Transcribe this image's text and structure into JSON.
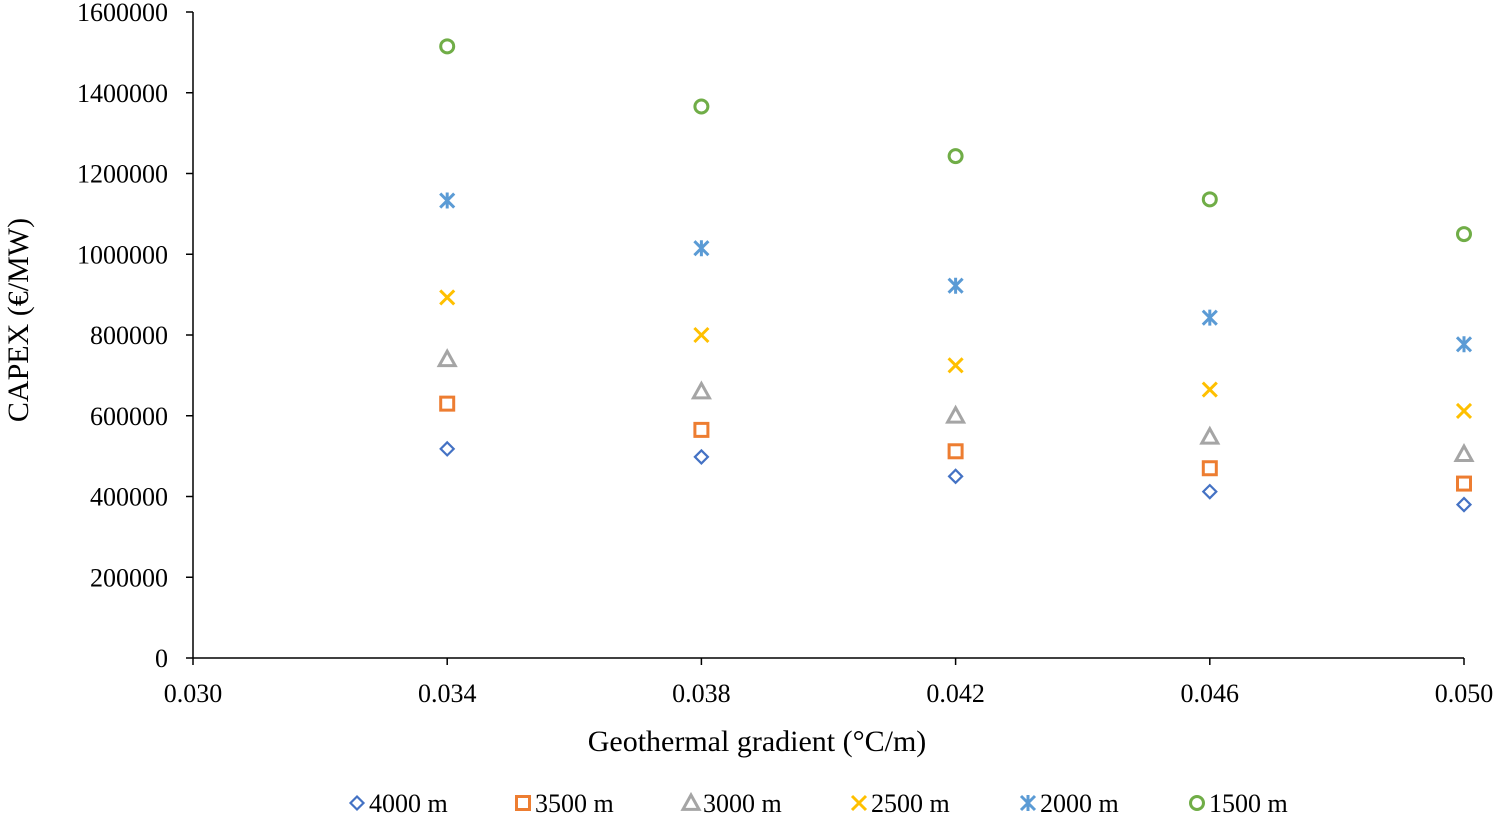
{
  "chart_data": {
    "type": "scatter",
    "title": "",
    "xlabel": "Geothermal gradient (°C/m)",
    "ylabel": "CAPEX (€/MW)",
    "xlim": [
      0.03,
      0.05
    ],
    "ylim": [
      0,
      1600000
    ],
    "xticks": [
      "0.030",
      "0.034",
      "0.038",
      "0.042",
      "0.046",
      "0.050"
    ],
    "yticks": [
      "0",
      "200000",
      "400000",
      "600000",
      "800000",
      "1000000",
      "1200000",
      "1400000",
      "1600000"
    ],
    "grid": false,
    "legend_position": "bottom",
    "x": [
      0.034,
      0.038,
      0.042,
      0.046,
      0.05
    ],
    "series": [
      {
        "name": "4000 m",
        "marker": "diamond",
        "color": "#4472C4",
        "values": [
          518000,
          498000,
          450000,
          412000,
          380000
        ]
      },
      {
        "name": "3500 m",
        "marker": "square",
        "color": "#ED7D31",
        "values": [
          630000,
          565000,
          512000,
          470000,
          432000
        ]
      },
      {
        "name": "3000 m",
        "marker": "triangle",
        "color": "#A5A5A5",
        "values": [
          740000,
          660000,
          600000,
          548000,
          505000
        ]
      },
      {
        "name": "2500 m",
        "marker": "x",
        "color": "#FFC000",
        "values": [
          893000,
          800000,
          725000,
          665000,
          612000
        ]
      },
      {
        "name": "2000 m",
        "marker": "star",
        "color": "#5B9BD5",
        "values": [
          1133000,
          1015000,
          922000,
          843000,
          777000
        ]
      },
      {
        "name": "1500 m",
        "marker": "circle",
        "color": "#70AD47",
        "values": [
          1515000,
          1366000,
          1243000,
          1136000,
          1050000
        ]
      }
    ]
  }
}
